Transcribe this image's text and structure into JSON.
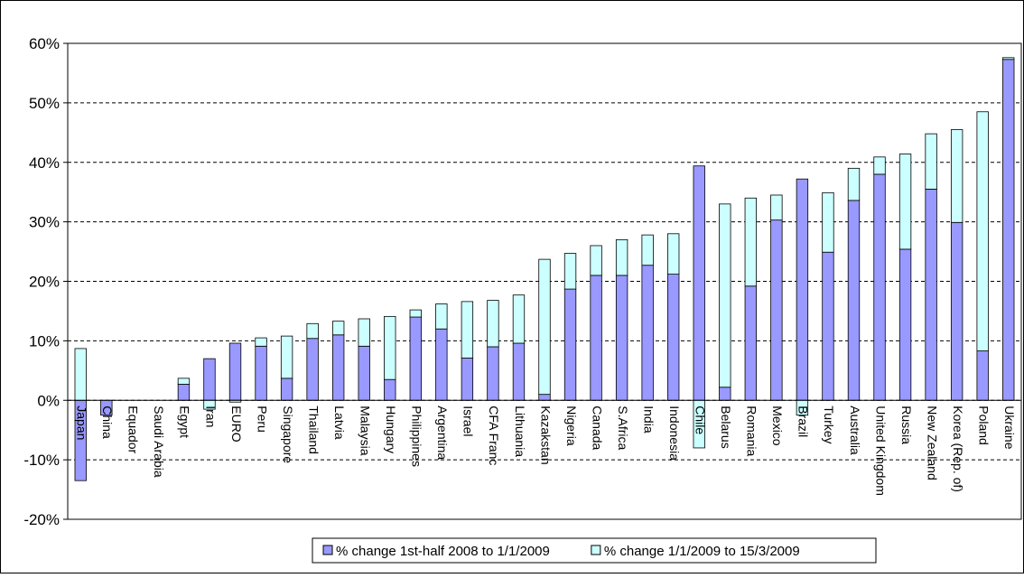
{
  "chart_data": {
    "type": "stacked-bar",
    "categories": [
      "Japan",
      "China",
      "Equador",
      "Saudi Arabia",
      "Egypt",
      "Iran",
      "EURO",
      "Peru",
      "Singapore",
      "Thailand",
      "Latvia",
      "Malaysia",
      "Hungary",
      "Philippines",
      "Argentina",
      "Israel",
      "CFA Franc",
      "Lithuania",
      "Kazakstan",
      "Nigeria",
      "Canada",
      "S.Africa",
      "India",
      "Indonesia",
      "Chile",
      "Belarus",
      "Romania",
      "Mexico",
      "Brazil",
      "Turkey",
      "Australia",
      "United Kingdom",
      "Russia",
      "New Zealand",
      "Korea (Rep. of)",
      "Poland",
      "Ukraine"
    ],
    "series": [
      {
        "name": "% change 1st-half 2008 to 1/1/2009",
        "color": "#9999ff",
        "values": [
          -13.5,
          -2.5,
          0,
          0,
          2.7,
          7.0,
          9.6,
          9.1,
          3.7,
          10.4,
          11.0,
          9.1,
          3.5,
          14.0,
          12.0,
          7.1,
          9.0,
          9.6,
          1.0,
          18.7,
          21.0,
          21.0,
          22.7,
          21.2,
          39.4,
          2.2,
          19.2,
          30.3,
          37.2,
          24.9,
          33.6,
          38.0,
          25.4,
          35.5,
          29.9,
          8.3,
          57.3
        ]
      },
      {
        "name": "% change 1/1/2009 to 15/3/2009",
        "color": "#ccffff",
        "values": [
          8.7,
          0,
          0,
          0,
          1.0,
          -1.5,
          -0.3,
          1.4,
          7.1,
          2.5,
          2.3,
          4.6,
          10.6,
          1.2,
          4.2,
          9.5,
          7.8,
          8.1,
          22.7,
          6.0,
          5.0,
          6.0,
          5.1,
          6.8,
          -8.0,
          30.8,
          14.8,
          4.2,
          -2.5,
          10.0,
          5.4,
          2.9,
          16.0,
          9.3,
          15.6,
          40.2,
          0.3
        ]
      }
    ],
    "ylim": [
      -20,
      60
    ],
    "yticks": [
      {
        "value": -20,
        "label": "-20%"
      },
      {
        "value": -10,
        "label": "-10%"
      },
      {
        "value": 0,
        "label": "0%"
      },
      {
        "value": 10,
        "label": "10%"
      },
      {
        "value": 20,
        "label": "20%"
      },
      {
        "value": 30,
        "label": "30%"
      },
      {
        "value": 40,
        "label": "40%"
      },
      {
        "value": 50,
        "label": "50%"
      },
      {
        "value": 60,
        "label": "60%"
      }
    ],
    "grid": true
  }
}
